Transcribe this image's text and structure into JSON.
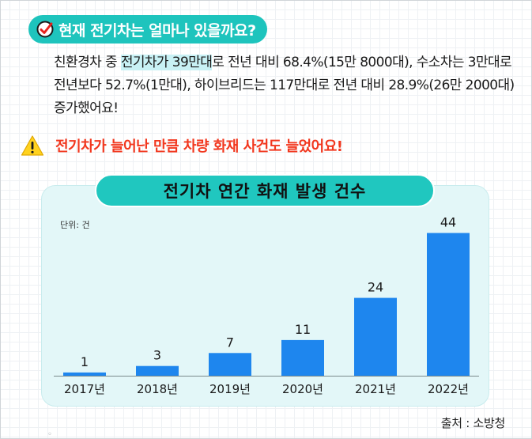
{
  "question": "현재 전기차는 얼마나 있을까요?",
  "paragraph": {
    "before": "친환경차 중 ",
    "highlight": "전기차가 39만대",
    "after": "로 전년 대비 68.4%(15만 8000대), 수소차는 3만대로 전년보다 52.7%(1만대), 하이브리드는 117만대로 전년 대비 28.9%(26만 2000대) 증가했어요!"
  },
  "warning": "전기차가 늘어난 만큼 차량 화재 사건도 늘었어요!",
  "unit_label": "단위: 건",
  "source": "출처 : 소방청",
  "colors": {
    "accent": "#20c7bf",
    "bar": "#1e86ee",
    "warning": "#f2371e",
    "chart_bg": "#e3f7f8"
  },
  "icons": [
    "check-icon",
    "warning-icon"
  ],
  "chart_data": {
    "type": "bar",
    "title": "전기차 연간 화재 발생 건수",
    "categories": [
      "2017년",
      "2018년",
      "2019년",
      "2020년",
      "2021년",
      "2022년"
    ],
    "values": [
      1,
      3,
      7,
      11,
      24,
      44
    ],
    "ylabel": "",
    "xlabel": "",
    "ylim": [
      0,
      50
    ],
    "grid": false,
    "data_labels": true
  }
}
